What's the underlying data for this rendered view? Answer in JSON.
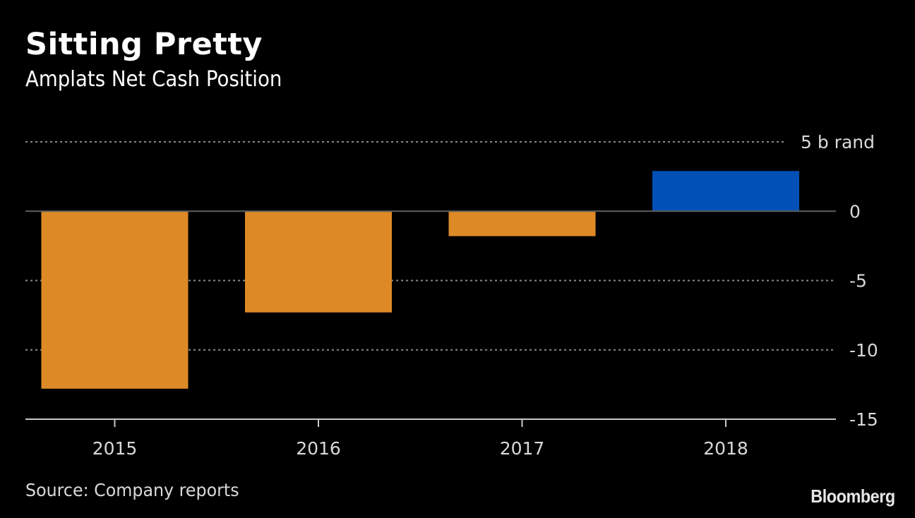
{
  "header": {
    "title": "Sitting Pretty",
    "subtitle": "Amplats Net Cash Position"
  },
  "footer": {
    "source": "Source: Company reports",
    "brand": "Bloomberg"
  },
  "colors": {
    "background": "#000000",
    "negative": "#DD8A26",
    "positive": "#0050B5",
    "zero_line": "#5f5f5f",
    "grid": "#8a8a8a",
    "axis": "#c8c8c8",
    "text": "#d9d9d9"
  },
  "chart_data": {
    "type": "bar",
    "title": "Sitting Pretty",
    "subtitle": "Amplats Net Cash Position",
    "categories": [
      "2015",
      "2016",
      "2017",
      "2018"
    ],
    "values": [
      -12.8,
      -7.3,
      -1.8,
      2.9
    ],
    "unit": "b rand",
    "xlabel": "",
    "ylabel": "",
    "ylim": [
      -15,
      5
    ],
    "yticks": [
      5,
      0,
      -5,
      -10,
      -15
    ],
    "ytick_labels": [
      "5 b rand",
      "0",
      "-5",
      "-10",
      "-15"
    ],
    "y_axis_position": "right",
    "grid": true,
    "grid_style": "dotted",
    "legend": "none",
    "source": "Source: Company reports"
  }
}
